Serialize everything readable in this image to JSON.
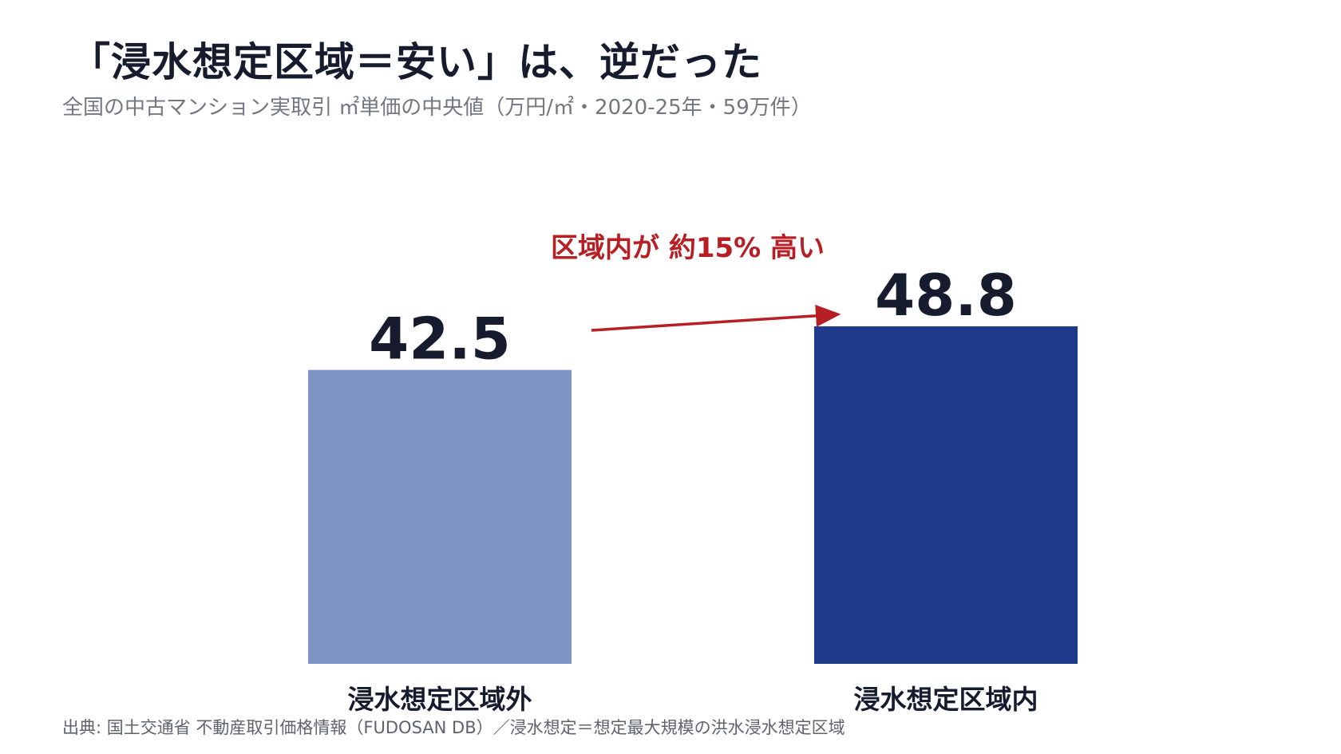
{
  "header": {
    "title": "「浸水想定区域＝安い」は、逆だった",
    "subtitle": "全国の中古マンション実取引 ㎡単価の中央値（万円/㎡・2020-25年・59万件）"
  },
  "chart_data": {
    "type": "bar",
    "categories": [
      "浸水想定区域外",
      "浸水想定区域内"
    ],
    "values": [
      42.5,
      48.8
    ],
    "value_labels": [
      "42.5",
      "48.8"
    ],
    "colors": [
      "#7e95c6",
      "#1f3a8a"
    ],
    "ylim": [
      0,
      48.8
    ],
    "grid": false,
    "legend": "none",
    "annotation": {
      "text": "区域内が 約15% 高い",
      "color": "#b81f24"
    }
  },
  "footer": {
    "source": "出典: 国土交通省 不動産取引価格情報（FUDOSAN DB）／浸水想定＝想定最大規模の洪水浸水想定区域"
  }
}
